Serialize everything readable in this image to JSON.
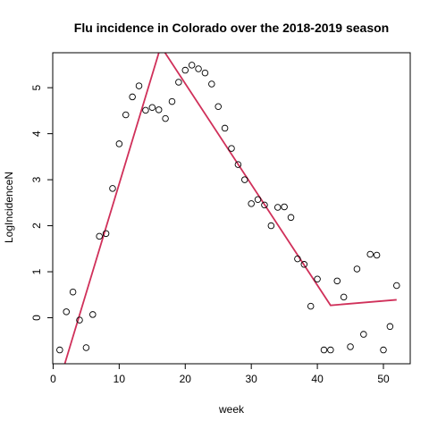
{
  "chart_data": {
    "type": "scatter",
    "title": "Flu incidence in Colorado over the 2018-2019 season",
    "xlabel": "week",
    "ylabel": "LogIncidenceN",
    "xlim": [
      -0.06,
      54.06
    ],
    "ylim": [
      -1.0,
      5.76
    ],
    "xticks": [
      0,
      10,
      20,
      30,
      40,
      50
    ],
    "yticks": [
      0,
      1,
      2,
      3,
      4,
      5
    ],
    "xtick_labels": [
      "0",
      "10",
      "20",
      "30",
      "40",
      50
    ],
    "ytick_labels": [
      "0",
      "1",
      "2",
      "3",
      "4",
      "5"
    ],
    "grid": false,
    "legend": "none",
    "fit_color": "#d0305a",
    "point_color": "#000000",
    "series": [
      {
        "type": "scatter",
        "points": [
          [
            1,
            -0.7
          ],
          [
            2,
            0.13
          ],
          [
            3,
            0.56
          ],
          [
            4,
            -0.05
          ],
          [
            5,
            -0.65
          ],
          [
            6,
            0.07
          ],
          [
            7,
            1.77
          ],
          [
            8,
            1.83
          ],
          [
            9,
            2.81
          ],
          [
            10,
            3.78
          ],
          [
            11,
            4.41
          ],
          [
            12,
            4.8
          ],
          [
            13,
            5.04
          ],
          [
            14,
            4.51
          ],
          [
            15,
            4.57
          ],
          [
            16,
            4.52
          ],
          [
            17,
            4.33
          ],
          [
            18,
            4.7
          ],
          [
            19,
            5.12
          ],
          [
            20,
            5.38
          ],
          [
            21,
            5.49
          ],
          [
            22,
            5.41
          ],
          [
            23,
            5.32
          ],
          [
            24,
            5.08
          ],
          [
            25,
            4.59
          ],
          [
            26,
            4.12
          ],
          [
            27,
            3.68
          ],
          [
            28,
            3.33
          ],
          [
            29,
            3.0
          ],
          [
            30,
            2.48
          ],
          [
            31,
            2.57
          ],
          [
            32,
            2.45
          ],
          [
            33,
            2.0
          ],
          [
            34,
            2.4
          ],
          [
            35,
            2.41
          ],
          [
            36,
            2.18
          ],
          [
            37,
            1.28
          ],
          [
            38,
            1.16
          ],
          [
            39,
            0.25
          ],
          [
            40,
            0.84
          ],
          [
            41,
            -0.7
          ],
          [
            42,
            -0.7
          ],
          [
            43,
            0.8
          ],
          [
            44,
            0.45
          ],
          [
            45,
            -0.63
          ],
          [
            46,
            1.06
          ],
          [
            47,
            -0.36
          ],
          [
            48,
            1.38
          ],
          [
            49,
            1.36
          ],
          [
            50,
            -0.7
          ],
          [
            51,
            -0.19
          ],
          [
            52,
            0.7
          ]
        ]
      },
      {
        "type": "line",
        "points": [
          [
            0.5,
            -1.6
          ],
          [
            16.3,
            5.9
          ],
          [
            42,
            0.27
          ],
          [
            52,
            0.39
          ]
        ]
      }
    ]
  }
}
